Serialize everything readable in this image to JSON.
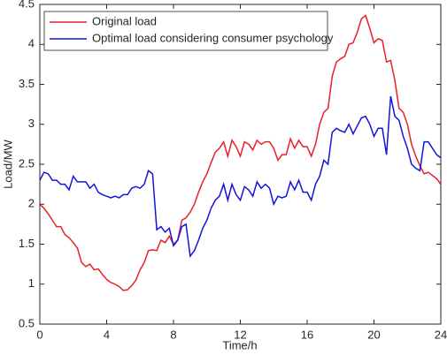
{
  "chart_data": {
    "type": "line",
    "xlabel": "Time/h",
    "ylabel": "Load/MW",
    "x": [
      0,
      0.25,
      0.5,
      0.75,
      1,
      1.25,
      1.5,
      1.75,
      2,
      2.25,
      2.5,
      2.75,
      3,
      3.25,
      3.5,
      3.75,
      4,
      4.25,
      4.5,
      4.75,
      5,
      5.25,
      5.5,
      5.75,
      6,
      6.25,
      6.5,
      6.75,
      7,
      7.25,
      7.5,
      7.75,
      8,
      8.25,
      8.5,
      8.75,
      9,
      9.25,
      9.5,
      9.75,
      10,
      10.25,
      10.5,
      10.75,
      11,
      11.25,
      11.5,
      11.75,
      12,
      12.25,
      12.5,
      12.75,
      13,
      13.25,
      13.5,
      13.75,
      14,
      14.25,
      14.5,
      14.75,
      15,
      15.25,
      15.5,
      15.75,
      16,
      16.25,
      16.5,
      16.75,
      17,
      17.25,
      17.5,
      17.75,
      18,
      18.25,
      18.5,
      18.75,
      19,
      19.25,
      19.5,
      19.75,
      20,
      20.25,
      20.5,
      20.75,
      21,
      21.25,
      21.5,
      21.75,
      22,
      22.25,
      22.5,
      22.75,
      23,
      23.25,
      23.5,
      23.75,
      24
    ],
    "series": [
      {
        "name": "Original load",
        "color": "#e8202a",
        "values": [
          2.0,
          1.95,
          1.88,
          1.8,
          1.72,
          1.72,
          1.62,
          1.58,
          1.52,
          1.45,
          1.27,
          1.22,
          1.25,
          1.18,
          1.19,
          1.12,
          1.06,
          1.02,
          1.0,
          0.97,
          0.92,
          0.93,
          0.98,
          1.05,
          1.18,
          1.27,
          1.42,
          1.43,
          1.42,
          1.55,
          1.52,
          1.6,
          1.5,
          1.55,
          1.8,
          1.83,
          1.9,
          2.0,
          2.15,
          2.28,
          2.38,
          2.52,
          2.65,
          2.7,
          2.78,
          2.6,
          2.8,
          2.72,
          2.6,
          2.78,
          2.75,
          2.68,
          2.8,
          2.75,
          2.78,
          2.78,
          2.7,
          2.55,
          2.62,
          2.62,
          2.82,
          2.7,
          2.8,
          2.72,
          2.72,
          2.6,
          2.75,
          3.0,
          3.15,
          3.2,
          3.6,
          3.78,
          3.82,
          3.85,
          4.0,
          4.02,
          4.15,
          4.32,
          4.36,
          4.2,
          4.02,
          4.07,
          4.05,
          3.78,
          3.8,
          3.55,
          3.2,
          3.15,
          3.0,
          2.75,
          2.6,
          2.48,
          2.38,
          2.4,
          2.36,
          2.32,
          2.25
        ]
      },
      {
        "name": "Optimal load considering consumer psychology",
        "color": "#1414d8",
        "values": [
          2.3,
          2.4,
          2.38,
          2.3,
          2.3,
          2.25,
          2.25,
          2.18,
          2.35,
          2.28,
          2.28,
          2.28,
          2.2,
          2.25,
          2.15,
          2.12,
          2.1,
          2.08,
          2.1,
          2.08,
          2.12,
          2.12,
          2.2,
          2.22,
          2.2,
          2.25,
          2.42,
          2.38,
          1.68,
          1.72,
          1.65,
          1.7,
          1.48,
          1.55,
          1.72,
          1.75,
          1.35,
          1.42,
          1.55,
          1.7,
          1.8,
          1.95,
          2.05,
          2.1,
          2.25,
          2.05,
          2.25,
          2.12,
          2.05,
          2.22,
          2.18,
          2.1,
          2.28,
          2.2,
          2.25,
          2.2,
          2.0,
          2.1,
          2.08,
          2.1,
          2.28,
          2.18,
          2.3,
          2.15,
          2.15,
          2.05,
          2.25,
          2.35,
          2.55,
          2.5,
          2.9,
          2.95,
          2.92,
          2.9,
          3.0,
          2.88,
          2.98,
          3.08,
          3.1,
          3.0,
          2.85,
          2.95,
          2.95,
          2.62,
          3.35,
          3.1,
          3.05,
          2.85,
          2.7,
          2.5,
          2.45,
          2.42,
          2.78,
          2.78,
          2.7,
          2.62,
          2.58
        ]
      }
    ],
    "xlim": [
      0,
      24
    ],
    "xticks": [
      0,
      4,
      8,
      12,
      16,
      20,
      24
    ],
    "ylim": [
      0.5,
      4.5
    ],
    "yticks": [
      0.5,
      1,
      1.5,
      2,
      2.5,
      3,
      3.5,
      4,
      4.5
    ],
    "legend": "upper-left"
  }
}
